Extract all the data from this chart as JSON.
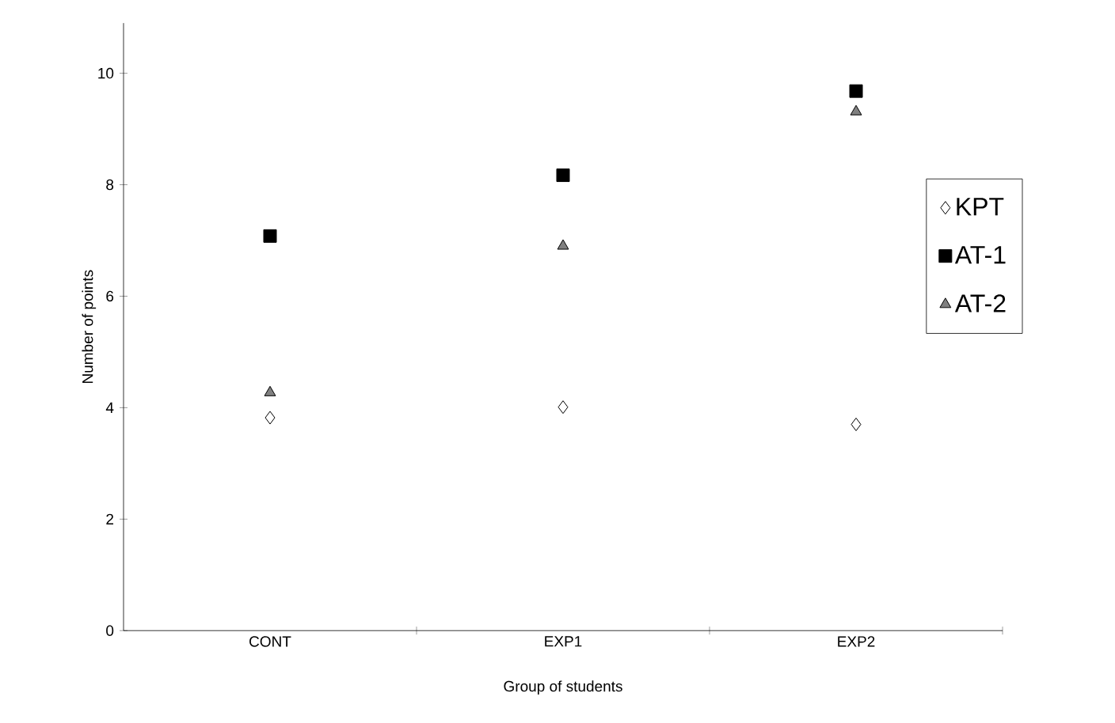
{
  "chart_data": {
    "type": "scatter",
    "xlabel": "Group of students",
    "ylabel": "Number of points",
    "categories": [
      "CONT",
      "EXP1",
      "EXP2"
    ],
    "series": [
      {
        "name": "KPT",
        "color": "#ffffff",
        "marker": "diamond",
        "values": [
          3.82,
          4.01,
          3.7
        ]
      },
      {
        "name": "AT-1",
        "color": "#000000",
        "marker": "square",
        "values": [
          7.08,
          8.17,
          9.68
        ]
      },
      {
        "name": "AT-2",
        "color": "#808080",
        "marker": "triangle",
        "values": [
          4.27,
          6.9,
          9.31
        ]
      }
    ],
    "ylim": [
      0,
      10.9
    ],
    "yticks": [
      0,
      2,
      4,
      6,
      8,
      10
    ],
    "grid": false,
    "legend": "right"
  }
}
